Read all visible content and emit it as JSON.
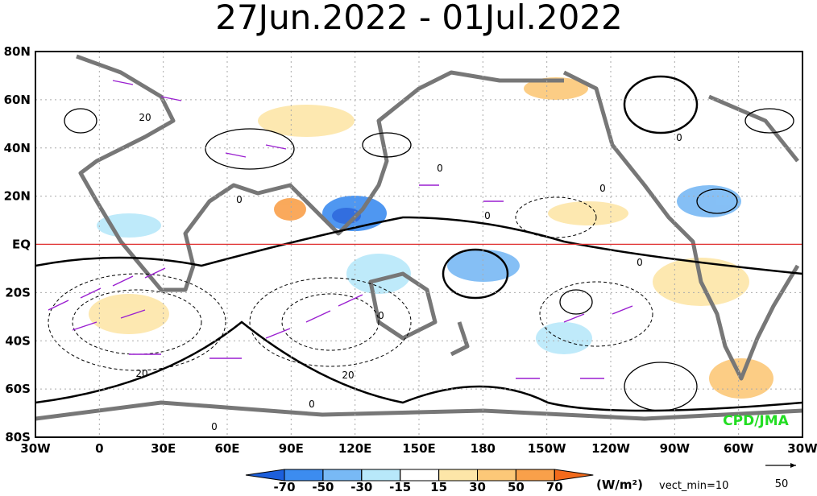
{
  "header": {
    "title": "27Jun.2022 - 01Jul.2022"
  },
  "map": {
    "lat_labels": [
      "80N",
      "60N",
      "40N",
      "20N",
      "EQ",
      "20S",
      "40S",
      "60S",
      "80S"
    ],
    "lon_labels": [
      "30W",
      "0",
      "30E",
      "60E",
      "90E",
      "120E",
      "150E",
      "180",
      "150W",
      "120W",
      "90W",
      "60W",
      "30W"
    ],
    "contour_labels": [
      "20",
      "0",
      "0",
      "0",
      "0",
      "0",
      "0",
      "0",
      "20",
      "20",
      "0",
      "0"
    ],
    "credit": "CPD/JMA"
  },
  "legend": {
    "ticks": [
      -70,
      -50,
      -30,
      -15,
      15,
      30,
      50,
      70
    ],
    "colors": [
      "#1c5fdc",
      "#3c8cf0",
      "#78b9f5",
      "#b8e8fa",
      "#ffffff",
      "#fde6a8",
      "#fcc878",
      "#f9a04a",
      "#f26a1b"
    ],
    "units": "(W/m²)",
    "vector_min": "vect_min=10",
    "vector_scale": "50"
  }
}
